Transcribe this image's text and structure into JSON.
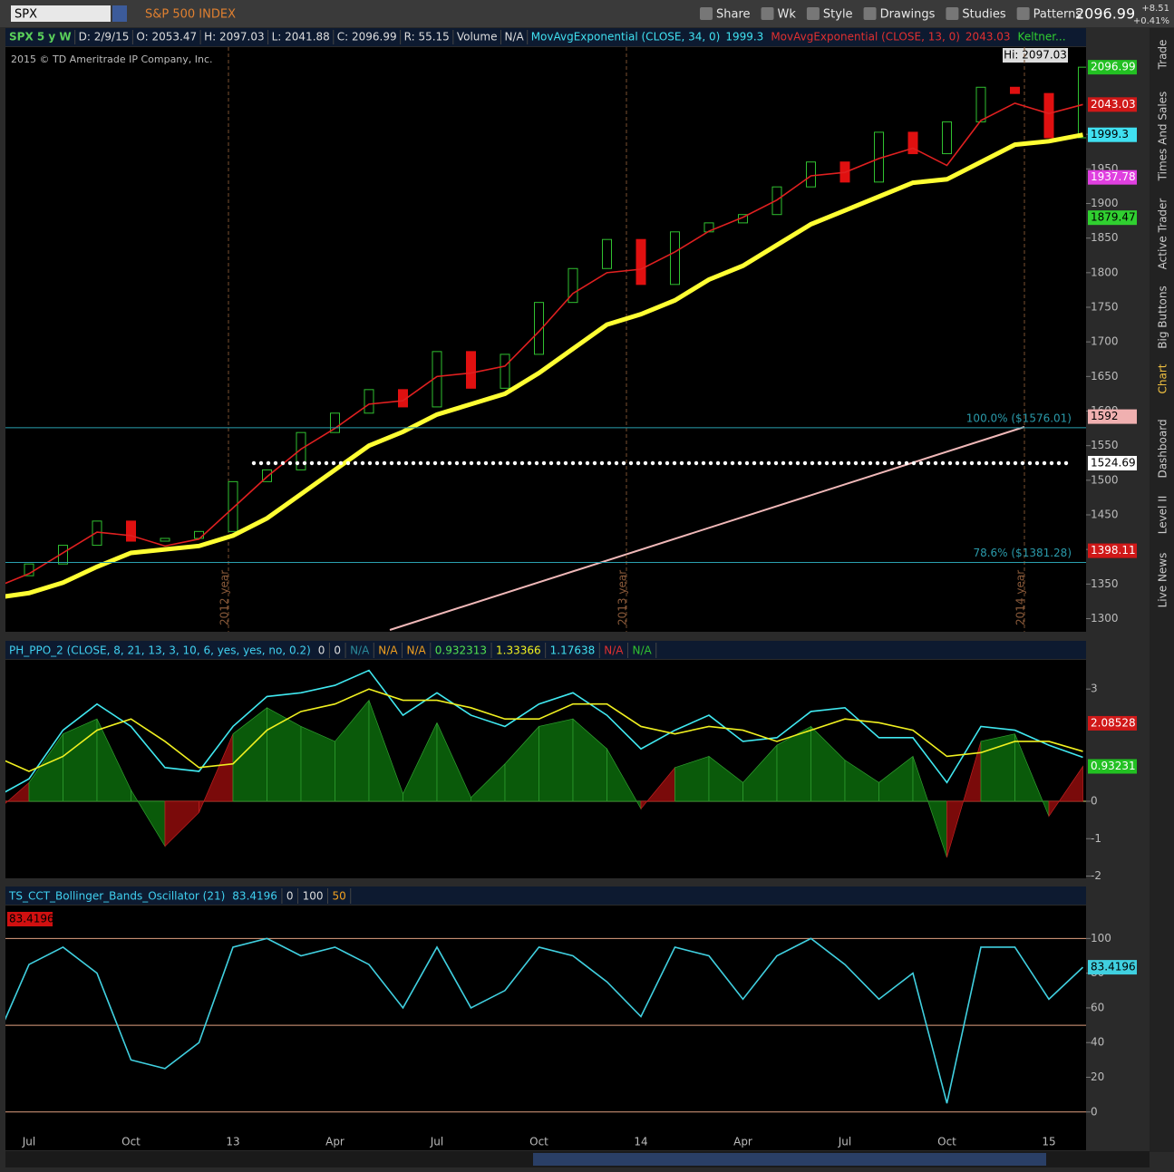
{
  "toolbar": {
    "symbol": "SPX",
    "description": "S&P 500 INDEX",
    "buttons": [
      "Share",
      "Wk",
      "Style",
      "Drawings",
      "Studies",
      "Patterns"
    ],
    "last": "2096.99",
    "change": "+8.51",
    "change_pct": "+0.41%"
  },
  "header": [
    "SPX 5 y W",
    "D: 2/9/15",
    "O: 2053.47",
    "H: 2097.03",
    "L: 2041.88",
    "C: 2096.99",
    "R: 55.15",
    "Volume",
    "N/A"
  ],
  "copyright": "2015 © TD Ameritrade IP Company, Inc.",
  "hi_label": "Hi: 2097.03",
  "year_labels": [
    "2012 year",
    "2013 year",
    "2014 year"
  ],
  "side_tabs": [
    "Trade",
    "Times And Sales",
    "Active Trader",
    "Big Buttons",
    "Chart",
    "Dashboard",
    "Level II",
    "Live News"
  ],
  "keltner_label": "Keltner...",
  "chart_data": [
    {
      "type": "candlestick",
      "open_first": 1340,
      "categories": [
        null,
        "Jul",
        null,
        null,
        "Oct",
        null,
        null,
        "13",
        null,
        null,
        "Apr",
        null,
        null,
        "Jul",
        null,
        null,
        "Oct",
        null,
        null,
        "14",
        null,
        null,
        "Apr",
        null,
        null,
        "Jul",
        null,
        null,
        "Oct",
        null,
        null,
        "15",
        null
      ],
      "values": [
        1362,
        1379,
        1406,
        1441,
        1412,
        1416,
        1426,
        1498,
        1515,
        1569,
        1597,
        1631,
        1606,
        1686,
        1633,
        1682,
        1757,
        1806,
        1848,
        1783,
        1859,
        1872,
        1884,
        1924,
        1960,
        1931,
        2003,
        1972,
        2018,
        2068,
        2059,
        1995,
        2096.99
      ],
      "series": [
        {
          "name": "MovAvgExponential (CLOSE, 34, 0)",
          "last": 1999.3,
          "color": "#ffff33",
          "values": [
            1330,
            1337,
            1352,
            1375,
            1395,
            1400,
            1405,
            1420,
            1445,
            1480,
            1515,
            1550,
            1570,
            1595,
            1610,
            1625,
            1655,
            1690,
            1725,
            1740,
            1760,
            1790,
            1810,
            1840,
            1870,
            1890,
            1910,
            1930,
            1935,
            1960,
            1985,
            1990,
            1999.3
          ]
        },
        {
          "name": "MovAvgExponential (CLOSE, 13, 0)",
          "last": 2043.03,
          "color": "#e02020",
          "values": [
            1345,
            1365,
            1395,
            1425,
            1420,
            1405,
            1415,
            1460,
            1505,
            1545,
            1575,
            1610,
            1615,
            1650,
            1655,
            1665,
            1715,
            1770,
            1800,
            1805,
            1830,
            1860,
            1880,
            1905,
            1940,
            1945,
            1965,
            1980,
            1955,
            2020,
            2045,
            2030,
            2043.03
          ]
        }
      ],
      "ylim": [
        1281,
        2126
      ],
      "yticks": [
        1300,
        1350,
        1400,
        1450,
        1500,
        1550,
        1600,
        1650,
        1700,
        1750,
        1800,
        1850,
        1900,
        1950,
        2000
      ],
      "fib_levels": [
        {
          "value": 1576.01,
          "label": "100.0% ($1576.01)"
        },
        {
          "value": 1381.28,
          "label": "78.6% ($1381.28)"
        }
      ],
      "price_labels": [
        2096.99,
        2043.03,
        1999.3,
        1937.78,
        1879.47,
        1592,
        1524.69,
        1398.11
      ],
      "price_label_colors": [
        "#22c022",
        "#d01818",
        "#40e0f0",
        "#e040e0",
        "#30d030",
        "#f0b0b0",
        "#ffffff",
        "#d01818"
      ]
    },
    {
      "type": "line",
      "study": "PH_PPO_2 (CLOSE, 8, 21, 13, 3, 10, 6, yes, yes, no, 0.2)",
      "readouts": [
        "0",
        "0",
        "N/A",
        "N/A",
        "N/A",
        "0.932313",
        "1.33366",
        "1.17638",
        "N/A",
        "N/A"
      ],
      "series": [
        {
          "name": "histogram",
          "color": "#0a5a0a",
          "values": [
            -0.3,
            0.5,
            1.8,
            2.2,
            0.3,
            -1.2,
            -0.3,
            1.8,
            2.5,
            2.0,
            1.6,
            2.7,
            0.2,
            2.1,
            0.1,
            1.0,
            2.0,
            2.2,
            1.4,
            -0.2,
            0.9,
            1.2,
            0.5,
            1.5,
            2.0,
            1.1,
            0.5,
            1.2,
            -1.5,
            1.6,
            1.8,
            -0.4,
            0.932313
          ]
        },
        {
          "name": "fast",
          "color": "#40e8f0",
          "values": [
            0.1,
            0.6,
            1.9,
            2.6,
            2.0,
            0.9,
            0.8,
            2.0,
            2.8,
            2.9,
            3.1,
            3.5,
            2.3,
            2.9,
            2.3,
            2.0,
            2.6,
            2.9,
            2.3,
            1.4,
            1.9,
            2.3,
            1.6,
            1.7,
            2.4,
            2.5,
            1.7,
            1.7,
            0.5,
            2.0,
            1.9,
            1.5,
            1.17638
          ]
        },
        {
          "name": "slow",
          "color": "#f0f020",
          "values": [
            1.2,
            0.8,
            1.2,
            1.9,
            2.2,
            1.6,
            0.9,
            1.0,
            1.9,
            2.4,
            2.6,
            3.0,
            2.7,
            2.7,
            2.5,
            2.2,
            2.2,
            2.6,
            2.6,
            2.0,
            1.8,
            2.0,
            1.9,
            1.6,
            1.9,
            2.2,
            2.1,
            1.9,
            1.2,
            1.3,
            1.6,
            1.6,
            1.33366
          ]
        }
      ],
      "ylim": [
        -2.06,
        3.78
      ],
      "yticks": [
        -2,
        -1,
        0,
        3
      ],
      "price_labels": [
        2.08528,
        0.93231
      ],
      "price_label_colors": [
        "#d01818",
        "#22c022"
      ]
    },
    {
      "type": "line",
      "study": "TS_CCT_Bollinger_Bands_Oscillator (21)",
      "readouts": [
        "83.4196",
        "0",
        "100",
        "50"
      ],
      "series": [
        {
          "name": "oscillator",
          "color": "#40d0e0",
          "values": [
            40,
            85,
            95,
            80,
            30,
            25,
            40,
            95,
            100,
            90,
            95,
            85,
            60,
            95,
            60,
            70,
            95,
            90,
            75,
            55,
            95,
            90,
            65,
            90,
            100,
            85,
            65,
            80,
            5,
            95,
            95,
            65,
            83.4196
          ]
        }
      ],
      "ylim": [
        -11.6,
        119
      ],
      "yticks": [
        0,
        20,
        40,
        60,
        80,
        100
      ],
      "levels": [
        0,
        50,
        100
      ],
      "price_labels": [
        83.4196
      ],
      "price_label_colors": [
        "#40d0e0"
      ]
    }
  ]
}
